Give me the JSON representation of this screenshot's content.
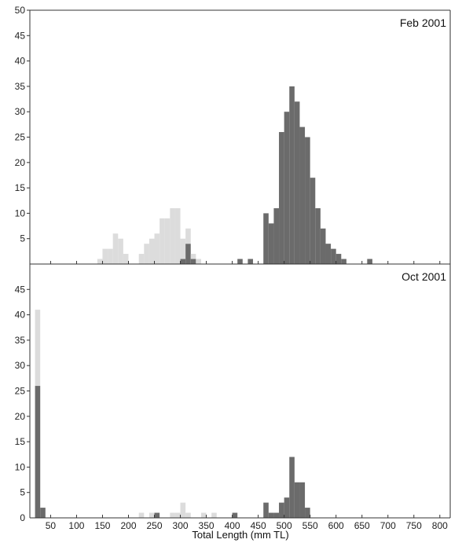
{
  "chart_data": {
    "type": "bar",
    "xlabel": "Total Length (mm TL)",
    "bin_width": 10,
    "xlim": [
      10,
      820
    ],
    "x_ticks": [
      50,
      100,
      150,
      200,
      250,
      300,
      350,
      400,
      450,
      500,
      550,
      600,
      650,
      700,
      750,
      800
    ],
    "colors": {
      "light": "#dcdcdc",
      "dark": "#6b6b6b",
      "axis": "#333333"
    },
    "series_style": {
      "light": "light",
      "dark": "dark"
    },
    "panels": [
      {
        "title": "Feb 2001",
        "ylim": [
          0,
          50
        ],
        "y_ticks": [
          5,
          10,
          15,
          20,
          25,
          30,
          35,
          40,
          45,
          50
        ],
        "bins": [
          {
            "x": 140,
            "light": 1,
            "dark": 0
          },
          {
            "x": 150,
            "light": 3,
            "dark": 0
          },
          {
            "x": 160,
            "light": 3,
            "dark": 0
          },
          {
            "x": 170,
            "light": 6,
            "dark": 0
          },
          {
            "x": 180,
            "light": 5,
            "dark": 0
          },
          {
            "x": 190,
            "light": 2,
            "dark": 0
          },
          {
            "x": 220,
            "light": 2,
            "dark": 0
          },
          {
            "x": 230,
            "light": 4,
            "dark": 0
          },
          {
            "x": 240,
            "light": 5,
            "dark": 0
          },
          {
            "x": 250,
            "light": 6,
            "dark": 0
          },
          {
            "x": 260,
            "light": 9,
            "dark": 0
          },
          {
            "x": 270,
            "light": 9,
            "dark": 0
          },
          {
            "x": 280,
            "light": 11,
            "dark": 0
          },
          {
            "x": 290,
            "light": 11,
            "dark": 0
          },
          {
            "x": 300,
            "light": 4,
            "dark": 1
          },
          {
            "x": 310,
            "light": 3,
            "dark": 4
          },
          {
            "x": 320,
            "light": 1,
            "dark": 1
          },
          {
            "x": 330,
            "light": 1,
            "dark": 0
          },
          {
            "x": 410,
            "light": 0,
            "dark": 1
          },
          {
            "x": 430,
            "light": 0,
            "dark": 1
          },
          {
            "x": 460,
            "light": 0,
            "dark": 10
          },
          {
            "x": 470,
            "light": 0,
            "dark": 8
          },
          {
            "x": 480,
            "light": 0,
            "dark": 11
          },
          {
            "x": 490,
            "light": 0,
            "dark": 26
          },
          {
            "x": 500,
            "light": 0,
            "dark": 30
          },
          {
            "x": 510,
            "light": 0,
            "dark": 35
          },
          {
            "x": 520,
            "light": 0,
            "dark": 32
          },
          {
            "x": 530,
            "light": 0,
            "dark": 27
          },
          {
            "x": 540,
            "light": 0,
            "dark": 25
          },
          {
            "x": 550,
            "light": 0,
            "dark": 17
          },
          {
            "x": 560,
            "light": 0,
            "dark": 11
          },
          {
            "x": 570,
            "light": 0,
            "dark": 7
          },
          {
            "x": 580,
            "light": 0,
            "dark": 4
          },
          {
            "x": 590,
            "light": 0,
            "dark": 3
          },
          {
            "x": 600,
            "light": 0,
            "dark": 2
          },
          {
            "x": 610,
            "light": 0,
            "dark": 1
          },
          {
            "x": 660,
            "light": 0,
            "dark": 1
          }
        ]
      },
      {
        "title": "Oct 2001",
        "ylim": [
          0,
          50
        ],
        "y_ticks": [
          5,
          10,
          15,
          20,
          25,
          30,
          35,
          40,
          45
        ],
        "bins": [
          {
            "x": 20,
            "light": 15,
            "dark": 26
          },
          {
            "x": 30,
            "light": 0,
            "dark": 2
          },
          {
            "x": 220,
            "light": 1,
            "dark": 0
          },
          {
            "x": 240,
            "light": 1,
            "dark": 0
          },
          {
            "x": 250,
            "light": 0,
            "dark": 1
          },
          {
            "x": 280,
            "light": 1,
            "dark": 0
          },
          {
            "x": 290,
            "light": 1,
            "dark": 0
          },
          {
            "x": 300,
            "light": 3,
            "dark": 0
          },
          {
            "x": 310,
            "light": 1,
            "dark": 0
          },
          {
            "x": 340,
            "light": 1,
            "dark": 0
          },
          {
            "x": 360,
            "light": 1,
            "dark": 0
          },
          {
            "x": 400,
            "light": 0,
            "dark": 1
          },
          {
            "x": 460,
            "light": 0,
            "dark": 3
          },
          {
            "x": 470,
            "light": 0,
            "dark": 1
          },
          {
            "x": 480,
            "light": 0,
            "dark": 1
          },
          {
            "x": 490,
            "light": 0,
            "dark": 3
          },
          {
            "x": 500,
            "light": 0,
            "dark": 4
          },
          {
            "x": 510,
            "light": 0,
            "dark": 12
          },
          {
            "x": 520,
            "light": 0,
            "dark": 7
          },
          {
            "x": 530,
            "light": 0,
            "dark": 7
          },
          {
            "x": 540,
            "light": 0,
            "dark": 2
          }
        ]
      }
    ]
  }
}
